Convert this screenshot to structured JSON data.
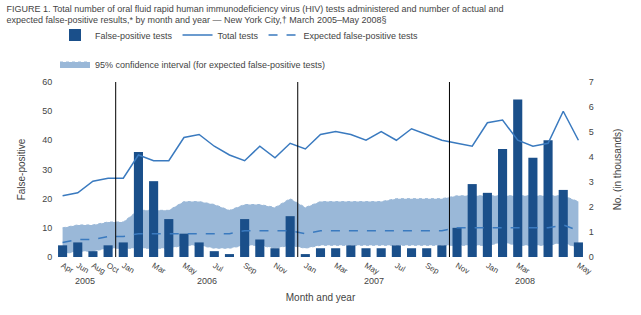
{
  "chart_data": {
    "type": "bar",
    "title": "FIGURE 1. Total number of oral fluid rapid human immunodeficiency virus (HIV) tests administered and number of actual and",
    "subtitle": "expected false-positive results,* by month and year — New York City,† March 2005–May 2008§",
    "xlabel": "Month and year",
    "ylabel": "False-positive",
    "y2label": "No. (in thousands)",
    "categories": [
      "Apr",
      "Jun",
      "Aug",
      "Oct",
      "Jan",
      null,
      "Mar",
      null,
      "May",
      null,
      "Jul",
      null,
      "Sep",
      null,
      "Nov",
      null,
      "Jan",
      null,
      "Mar",
      null,
      "May",
      null,
      "Jul",
      null,
      "Sep",
      null,
      "Nov",
      null,
      "Jan",
      null,
      "Mar",
      null,
      null,
      null,
      "May"
    ],
    "series": [
      {
        "name": "False-positive tests",
        "type": "bar",
        "color": "#1A4F8A",
        "values": [
          4,
          5,
          2,
          4,
          5,
          36,
          26,
          13,
          8,
          5,
          2,
          1,
          13,
          6,
          3,
          14,
          1,
          3,
          3,
          4,
          3,
          3,
          4,
          3,
          3,
          4,
          10,
          25,
          22,
          37,
          54,
          34,
          40,
          23,
          5
        ]
      },
      {
        "name": "Total tests",
        "type": "line",
        "color": "#3A7ABF",
        "axis": "y2",
        "values": [
          2.45,
          2.57,
          3.03,
          3.15,
          3.15,
          4.08,
          3.85,
          3.85,
          4.78,
          4.9,
          4.43,
          4.08,
          3.85,
          4.43,
          3.97,
          4.55,
          4.32,
          4.9,
          5.02,
          4.9,
          4.67,
          5.02,
          4.67,
          5.13,
          4.9,
          4.67,
          4.55,
          4.43,
          5.37,
          5.48,
          4.67,
          4.43,
          4.55,
          5.83,
          4.67
        ]
      },
      {
        "name": "Expected false-positive tests",
        "type": "line",
        "line_style": "dashed",
        "color": "#3A7ABF",
        "values": [
          5,
          6,
          6,
          7,
          7,
          8,
          8,
          8,
          8,
          8,
          8,
          8,
          9,
          9,
          9,
          9,
          8,
          9,
          9,
          9,
          9,
          9,
          9,
          9,
          9,
          9,
          10,
          10,
          10,
          10,
          10,
          10,
          10,
          11,
          9
        ]
      },
      {
        "name": "95% confidence interval (for expected false-positive tests)",
        "type": "band",
        "line_style": "dotted",
        "color": "#9AB8D8",
        "upper": [
          10,
          11,
          11,
          12,
          12,
          16,
          16,
          16,
          19,
          19,
          18,
          16,
          18,
          18,
          17,
          20,
          17,
          19,
          19,
          19,
          19,
          19,
          20,
          20,
          20,
          20,
          21,
          21,
          21,
          21,
          21,
          21,
          21,
          21,
          19
        ],
        "lower": [
          1,
          2,
          2,
          3,
          3,
          3,
          3,
          3,
          4,
          4,
          3,
          3,
          4,
          4,
          3,
          4,
          3,
          4,
          4,
          4,
          4,
          4,
          4,
          4,
          4,
          4,
          4,
          4,
          4,
          5,
          4,
          4,
          4,
          5,
          3
        ]
      }
    ],
    "ylim": [
      0,
      60
    ],
    "yticks": [
      0,
      10,
      20,
      30,
      40,
      50,
      60
    ],
    "y2lim": [
      0,
      7
    ],
    "y2ticks": [
      0,
      1,
      2,
      3,
      4,
      5,
      6,
      7
    ],
    "grid": false,
    "legend": "upper left",
    "annotations": [
      {
        "text": "2005",
        "x": 1.5
      },
      {
        "text": "2006",
        "x": 9.5
      },
      {
        "text": "2007",
        "x": 20.5
      },
      {
        "text": "2008",
        "x": 30.5
      }
    ],
    "year_separators": [
      3.5,
      15.5,
      25.5
    ]
  }
}
